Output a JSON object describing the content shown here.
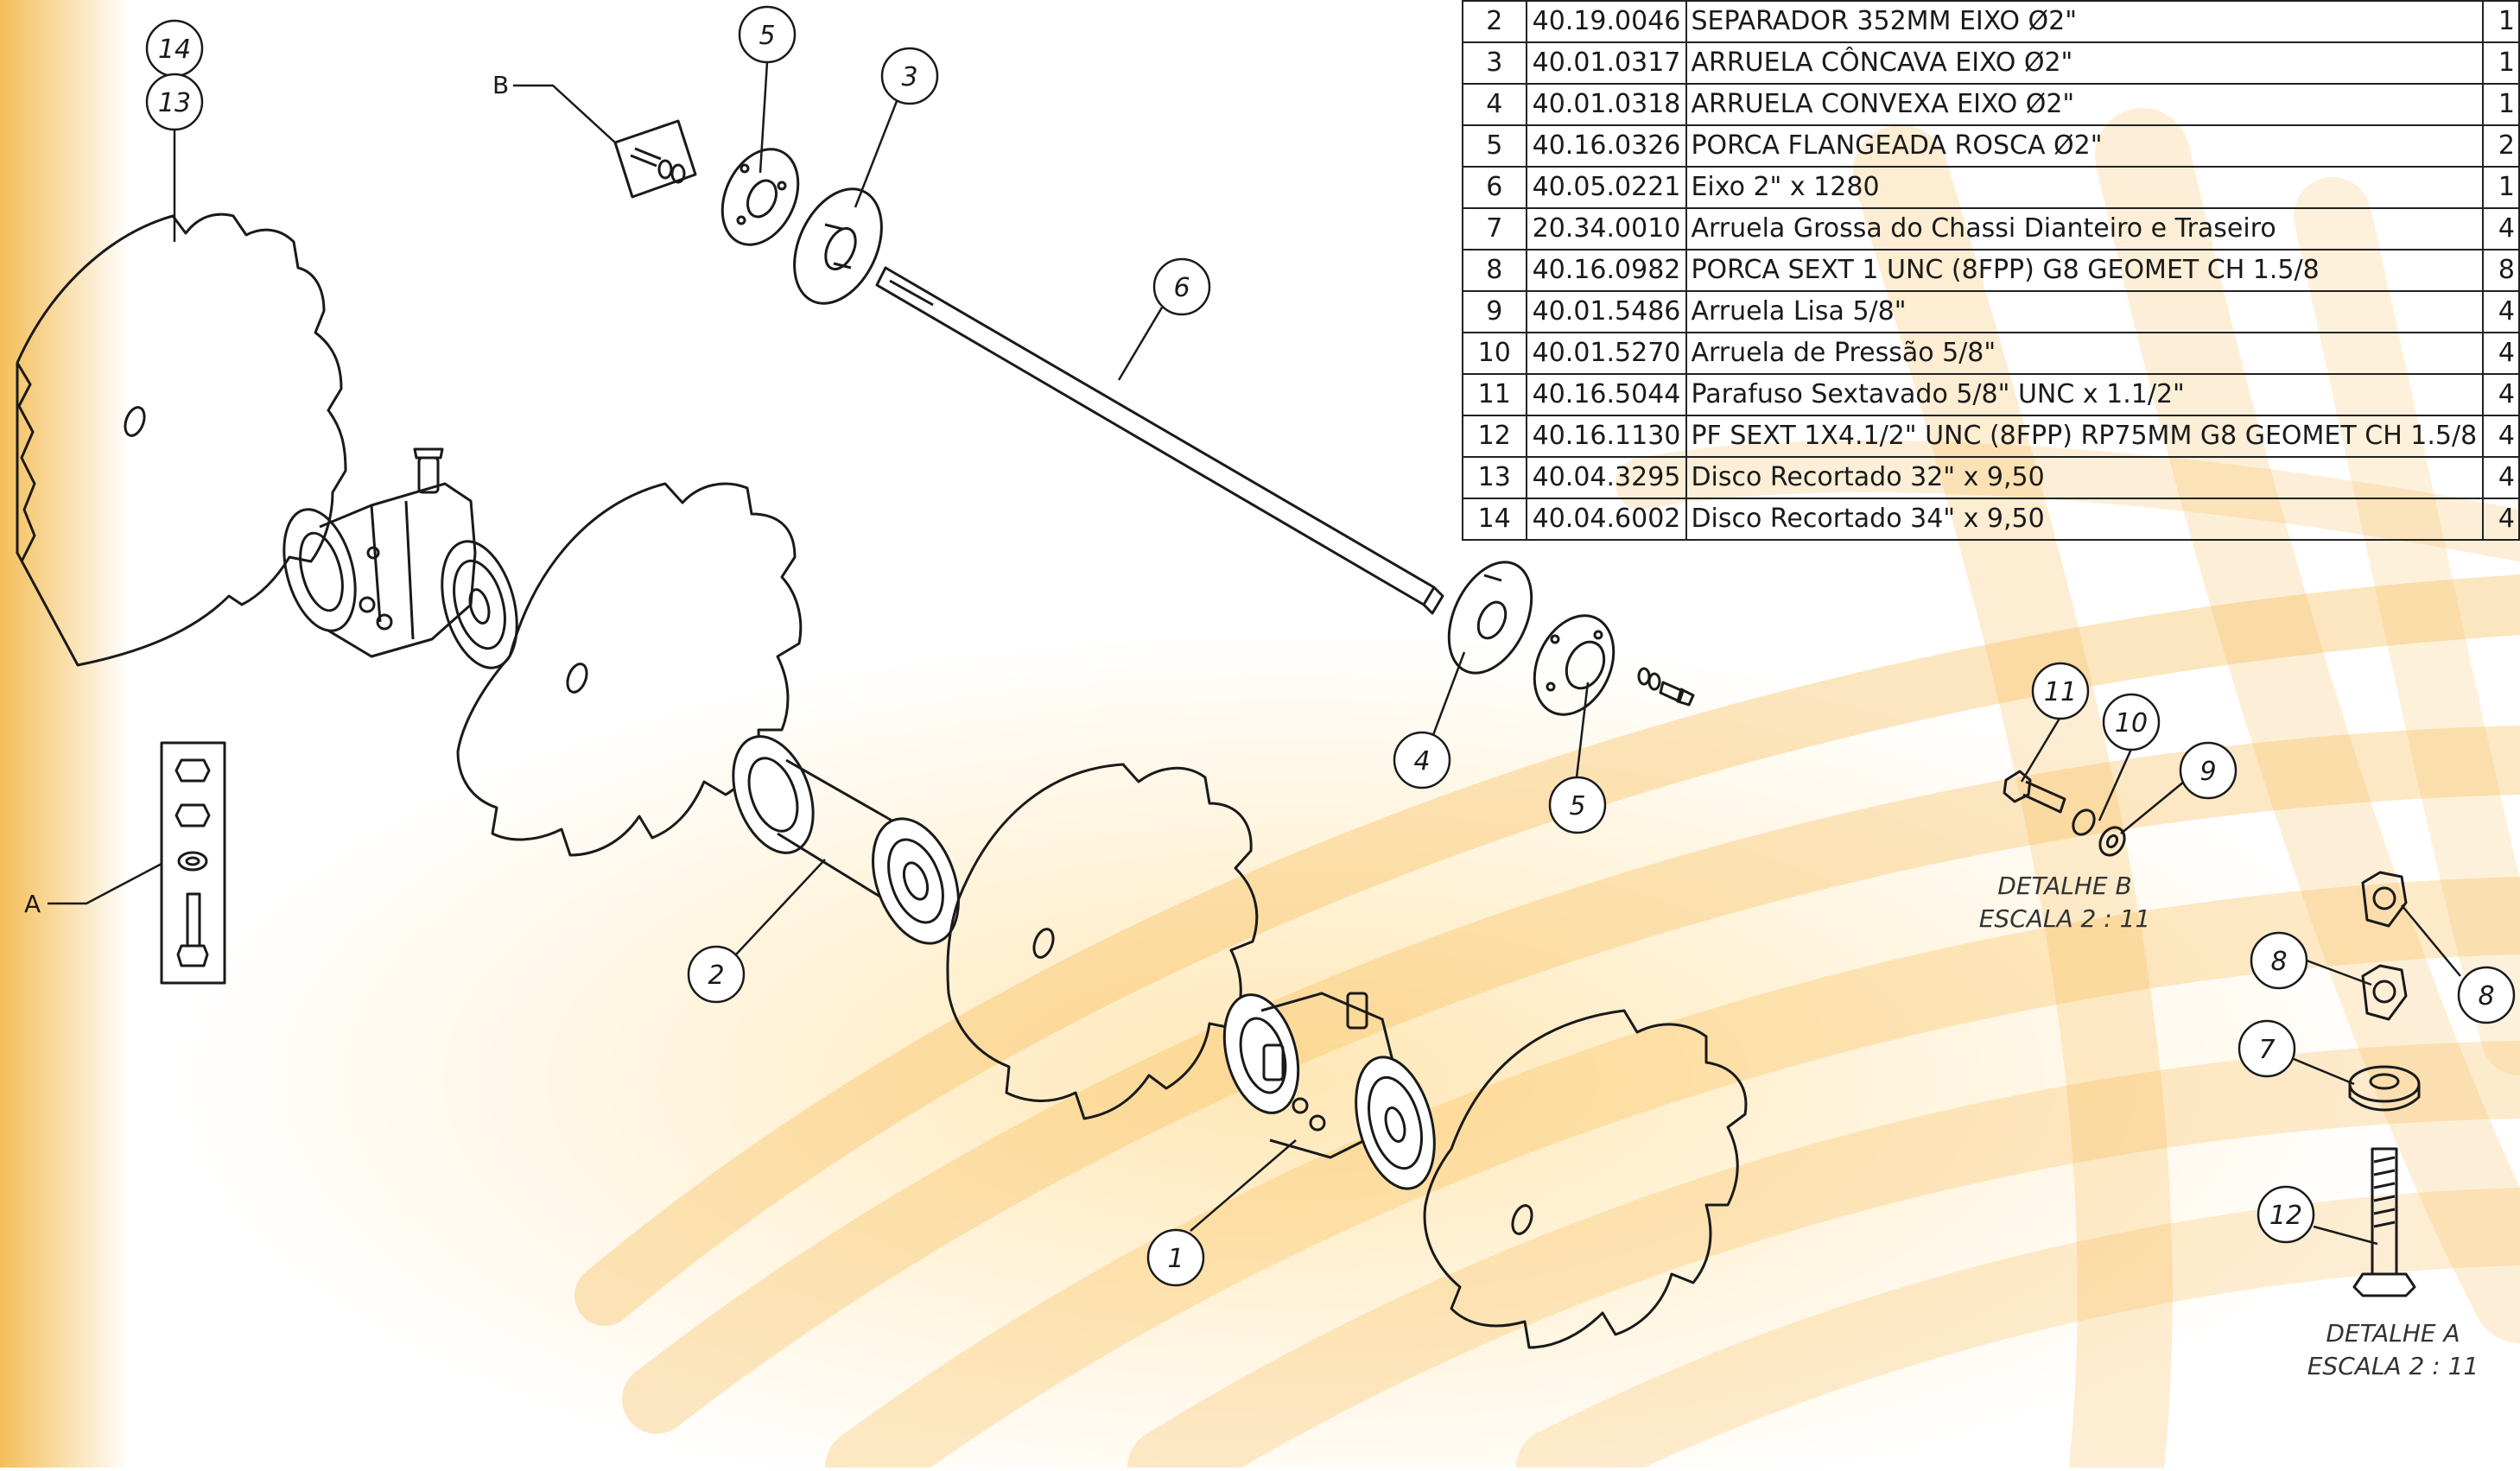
{
  "parts_table": {
    "rows": [
      {
        "item": "2",
        "code": "40.19.0046",
        "description": "SEPARADOR 352MM EIXO Ø2\"",
        "qty": "1"
      },
      {
        "item": "3",
        "code": "40.01.0317",
        "description": "ARRUELA CÔNCAVA EIXO Ø2\"",
        "qty": "1"
      },
      {
        "item": "4",
        "code": "40.01.0318",
        "description": "ARRUELA CONVEXA EIXO Ø2\"",
        "qty": "1"
      },
      {
        "item": "5",
        "code": "40.16.0326",
        "description": "PORCA FLANGEADA ROSCA Ø2\"",
        "qty": "2"
      },
      {
        "item": "6",
        "code": "40.05.0221",
        "description": "Eixo 2\" x 1280",
        "qty": "1"
      },
      {
        "item": "7",
        "code": "20.34.0010",
        "description": "Arruela Grossa do Chassi Dianteiro e Traseiro",
        "qty": "4"
      },
      {
        "item": "8",
        "code": "40.16.0982",
        "description": "PORCA SEXT 1 UNC (8FPP) G8 GEOMET CH 1.5/8",
        "qty": "8"
      },
      {
        "item": "9",
        "code": "40.01.5486",
        "description": "Arruela Lisa 5/8\"",
        "qty": "4"
      },
      {
        "item": "10",
        "code": "40.01.5270",
        "description": "Arruela de Pressão 5/8\"",
        "qty": "4"
      },
      {
        "item": "11",
        "code": "40.16.5044",
        "description": "Parafuso Sextavado 5/8\" UNC x 1.1/2\"",
        "qty": "4"
      },
      {
        "item": "12",
        "code": "40.16.1130",
        "description": "PF SEXT 1X4.1/2\" UNC (8FPP) RP75MM G8 GEOMET CH 1.5/8",
        "qty": "4"
      },
      {
        "item": "13",
        "code": "40.04.3295",
        "description": "Disco Recortado 32\" x 9,50",
        "qty": "4"
      },
      {
        "item": "14",
        "code": "40.04.6002",
        "description": "Disco Recortado 34\" x 9,50",
        "qty": "4"
      }
    ]
  },
  "balloons": {
    "b14": "14",
    "b13": "13",
    "b5a": "5",
    "b3": "3",
    "b6": "6",
    "b4": "4",
    "b5b": "5",
    "b2": "2",
    "b1": "1",
    "b11": "11",
    "b10": "10",
    "b9": "9",
    "b8a": "8",
    "b8b": "8",
    "b7": "7",
    "b12": "12"
  },
  "callouts": {
    "detail_a_letter": "A",
    "detail_b_letter": "B"
  },
  "details": {
    "b_title": "DETALHE B",
    "b_scale": "ESCALA 2 : 11",
    "a_title": "DETALHE A",
    "a_scale": "ESCALA 2 : 11"
  },
  "colors": {
    "background_accent": "#f5a623",
    "line": "#1a1a1a"
  }
}
